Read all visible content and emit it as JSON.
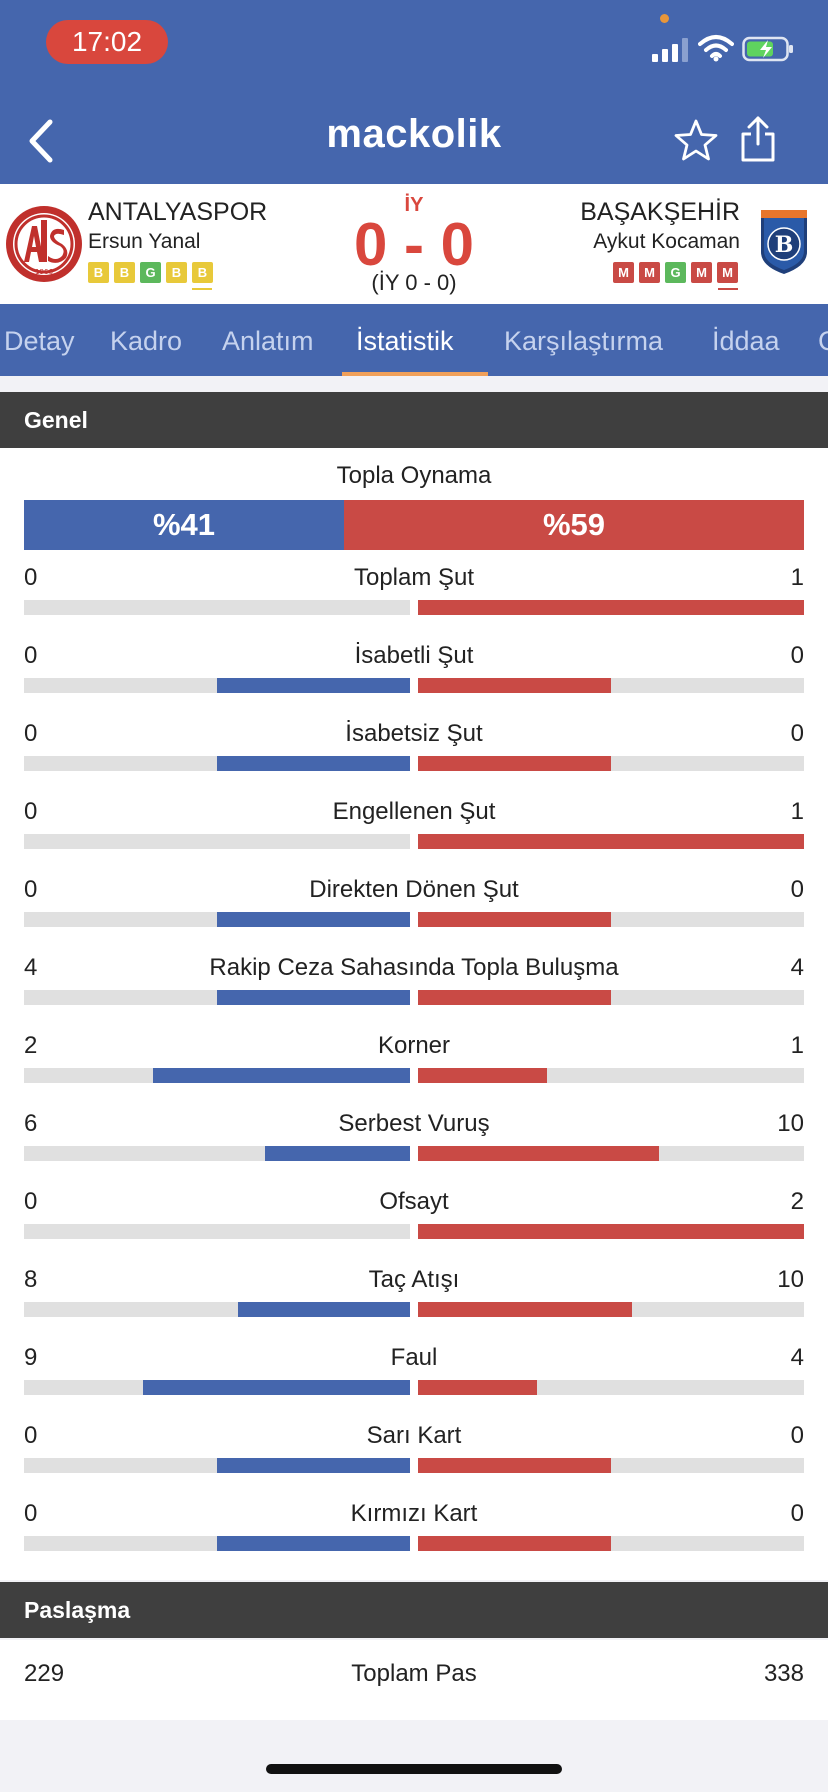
{
  "status_bar": {
    "time": "17:02"
  },
  "header": {
    "app_name": "mackolik"
  },
  "match": {
    "period_label": "İY",
    "score": "0 - 0",
    "halftime": "(İY 0 - 0)",
    "home": {
      "name": "ANTALYASPOR",
      "coach": "Ersun Yanal",
      "form": [
        "B",
        "B",
        "G",
        "B",
        "B"
      ],
      "logo_year": "1966"
    },
    "away": {
      "name": "BAŞAKŞEHİR",
      "coach": "Aykut Kocaman",
      "form": [
        "M",
        "M",
        "G",
        "M",
        "M"
      ],
      "logo_letter": "B"
    }
  },
  "tabs": [
    "Detay",
    "Kadro",
    "Anlatım",
    "İstatistik",
    "Karşılaştırma",
    "İddaa",
    "C"
  ],
  "active_tab": "İstatistik",
  "colors": {
    "home": "#4566ad",
    "away": "#c94a45",
    "header": "#4566ad",
    "accent": "#f0a05a",
    "section": "#3f3f3f"
  },
  "sections": {
    "general": {
      "title": "Genel",
      "possession": {
        "label": "Topla Oynama",
        "home": 41,
        "away": 59,
        "home_text": "%41",
        "away_text": "%59"
      },
      "stats": [
        {
          "name": "Toplam Şut",
          "home": "0",
          "away": "1"
        },
        {
          "name": "İsabetli Şut",
          "home": "0",
          "away": "0"
        },
        {
          "name": "İsabetsiz Şut",
          "home": "0",
          "away": "0"
        },
        {
          "name": "Engellenen Şut",
          "home": "0",
          "away": "1"
        },
        {
          "name": "Direkten Dönen Şut",
          "home": "0",
          "away": "0"
        },
        {
          "name": "Rakip Ceza Sahasında Topla Buluşma",
          "home": "4",
          "away": "4"
        },
        {
          "name": "Korner",
          "home": "2",
          "away": "1"
        },
        {
          "name": "Serbest Vuruş",
          "home": "6",
          "away": "10"
        },
        {
          "name": "Ofsayt",
          "home": "0",
          "away": "2"
        },
        {
          "name": "Taç Atışı",
          "home": "8",
          "away": "10"
        },
        {
          "name": "Faul",
          "home": "9",
          "away": "4"
        },
        {
          "name": "Sarı Kart",
          "home": "0",
          "away": "0"
        },
        {
          "name": "Kırmızı Kart",
          "home": "0",
          "away": "0"
        }
      ]
    },
    "passing": {
      "title": "Paslaşma",
      "stats": [
        {
          "name": "Toplam Pas",
          "home": "229",
          "away": "338"
        }
      ]
    }
  }
}
